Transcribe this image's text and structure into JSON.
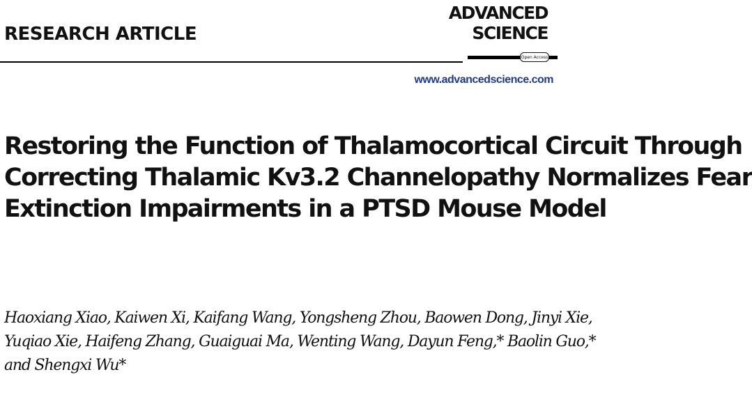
{
  "header": {
    "section_label": "RESEARCH ARTICLE",
    "journal": {
      "logo_line1": "ADVANCED",
      "logo_line2": "SCIENCE",
      "badge": "Open Access",
      "url": "www.advancedscience.com",
      "url_color": "#1f3b8f"
    }
  },
  "article": {
    "title_lines": [
      "Restoring the Function of Thalamocortical Circuit Through",
      "Correcting Thalamic Kv3.2 Channelopathy Normalizes Fear",
      "Extinction Impairments in a PTSD Mouse Model"
    ],
    "author_lines": [
      "Haoxiang Xiao, Kaiwen Xi, Kaifang Wang, Yongsheng Zhou, Baowen Dong, Jinyi Xie,",
      "Yuqiao Xie, Haifeng Zhang, Guaiguai Ma, Wenting Wang, Dayun Feng,* Baolin Guo,*",
      "and Shengxi Wu*"
    ]
  }
}
